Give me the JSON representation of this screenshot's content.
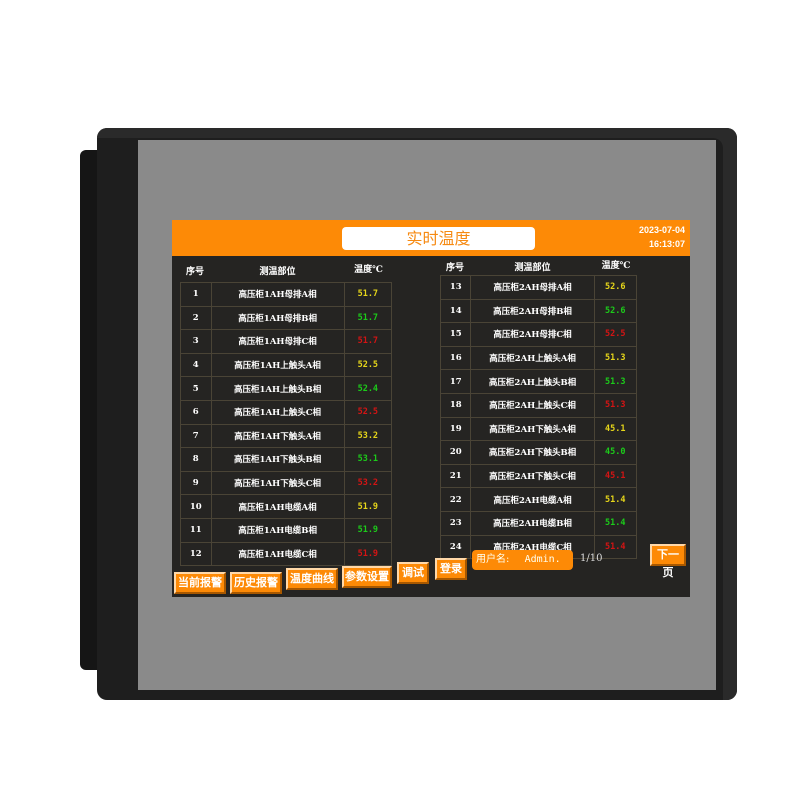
{
  "header": {
    "title": "实时温度",
    "date": "2023-07-04",
    "time": "16:13:07"
  },
  "columns": {
    "seq": "序号",
    "location": "测温部位",
    "temp": "温度℃"
  },
  "colors": {
    "accent": "#fd8a06",
    "phase_a": "#e6d61a",
    "phase_b": "#1ccb1a",
    "phase_c": "#d41414"
  },
  "left_rows": [
    {
      "seq": "1",
      "location": "高压柜1AH母排A相",
      "temp": "51.7",
      "color": "yellow"
    },
    {
      "seq": "2",
      "location": "高压柜1AH母排B相",
      "temp": "51.7",
      "color": "green"
    },
    {
      "seq": "3",
      "location": "高压柜1AH母排C相",
      "temp": "51.7",
      "color": "red"
    },
    {
      "seq": "4",
      "location": "高压柜1AH上触头A相",
      "temp": "52.5",
      "color": "yellow"
    },
    {
      "seq": "5",
      "location": "高压柜1AH上触头B相",
      "temp": "52.4",
      "color": "green"
    },
    {
      "seq": "6",
      "location": "高压柜1AH上触头C相",
      "temp": "52.5",
      "color": "red"
    },
    {
      "seq": "7",
      "location": "高压柜1AH下触头A相",
      "temp": "53.2",
      "color": "yellow"
    },
    {
      "seq": "8",
      "location": "高压柜1AH下触头B相",
      "temp": "53.1",
      "color": "green"
    },
    {
      "seq": "9",
      "location": "高压柜1AH下触头C相",
      "temp": "53.2",
      "color": "red"
    },
    {
      "seq": "10",
      "location": "高压柜1AH电缆A相",
      "temp": "51.9",
      "color": "yellow"
    },
    {
      "seq": "11",
      "location": "高压柜1AH电缆B相",
      "temp": "51.9",
      "color": "green"
    },
    {
      "seq": "12",
      "location": "高压柜1AH电缆C相",
      "temp": "51.9",
      "color": "red"
    }
  ],
  "right_rows": [
    {
      "seq": "13",
      "location": "高压柜2AH母排A相",
      "temp": "52.6",
      "color": "yellow"
    },
    {
      "seq": "14",
      "location": "高压柜2AH母排B相",
      "temp": "52.6",
      "color": "green"
    },
    {
      "seq": "15",
      "location": "高压柜2AH母排C相",
      "temp": "52.5",
      "color": "red"
    },
    {
      "seq": "16",
      "location": "高压柜2AH上触头A相",
      "temp": "51.3",
      "color": "yellow"
    },
    {
      "seq": "17",
      "location": "高压柜2AH上触头B相",
      "temp": "51.3",
      "color": "green"
    },
    {
      "seq": "18",
      "location": "高压柜2AH上触头C相",
      "temp": "51.3",
      "color": "red"
    },
    {
      "seq": "19",
      "location": "高压柜2AH下触头A相",
      "temp": "45.1",
      "color": "yellow"
    },
    {
      "seq": "20",
      "location": "高压柜2AH下触头B相",
      "temp": "45.0",
      "color": "green"
    },
    {
      "seq": "21",
      "location": "高压柜2AH下触头C相",
      "temp": "45.1",
      "color": "red"
    },
    {
      "seq": "22",
      "location": "高压柜2AH电缆A相",
      "temp": "51.4",
      "color": "yellow"
    },
    {
      "seq": "23",
      "location": "高压柜2AH电缆B相",
      "temp": "51.4",
      "color": "green"
    },
    {
      "seq": "24",
      "location": "高压柜2AH电缆C相",
      "temp": "51.4",
      "color": "red"
    }
  ],
  "nav": {
    "current_alarm": "当前报警",
    "history_alarm": "历史报警",
    "temp_curve": "温度曲线",
    "param_settings": "参数设置",
    "debug": "调试",
    "login": "登录",
    "next_page": "下一页"
  },
  "user": {
    "label": "用户名:",
    "name": "Admin."
  },
  "pagination": "1/10"
}
